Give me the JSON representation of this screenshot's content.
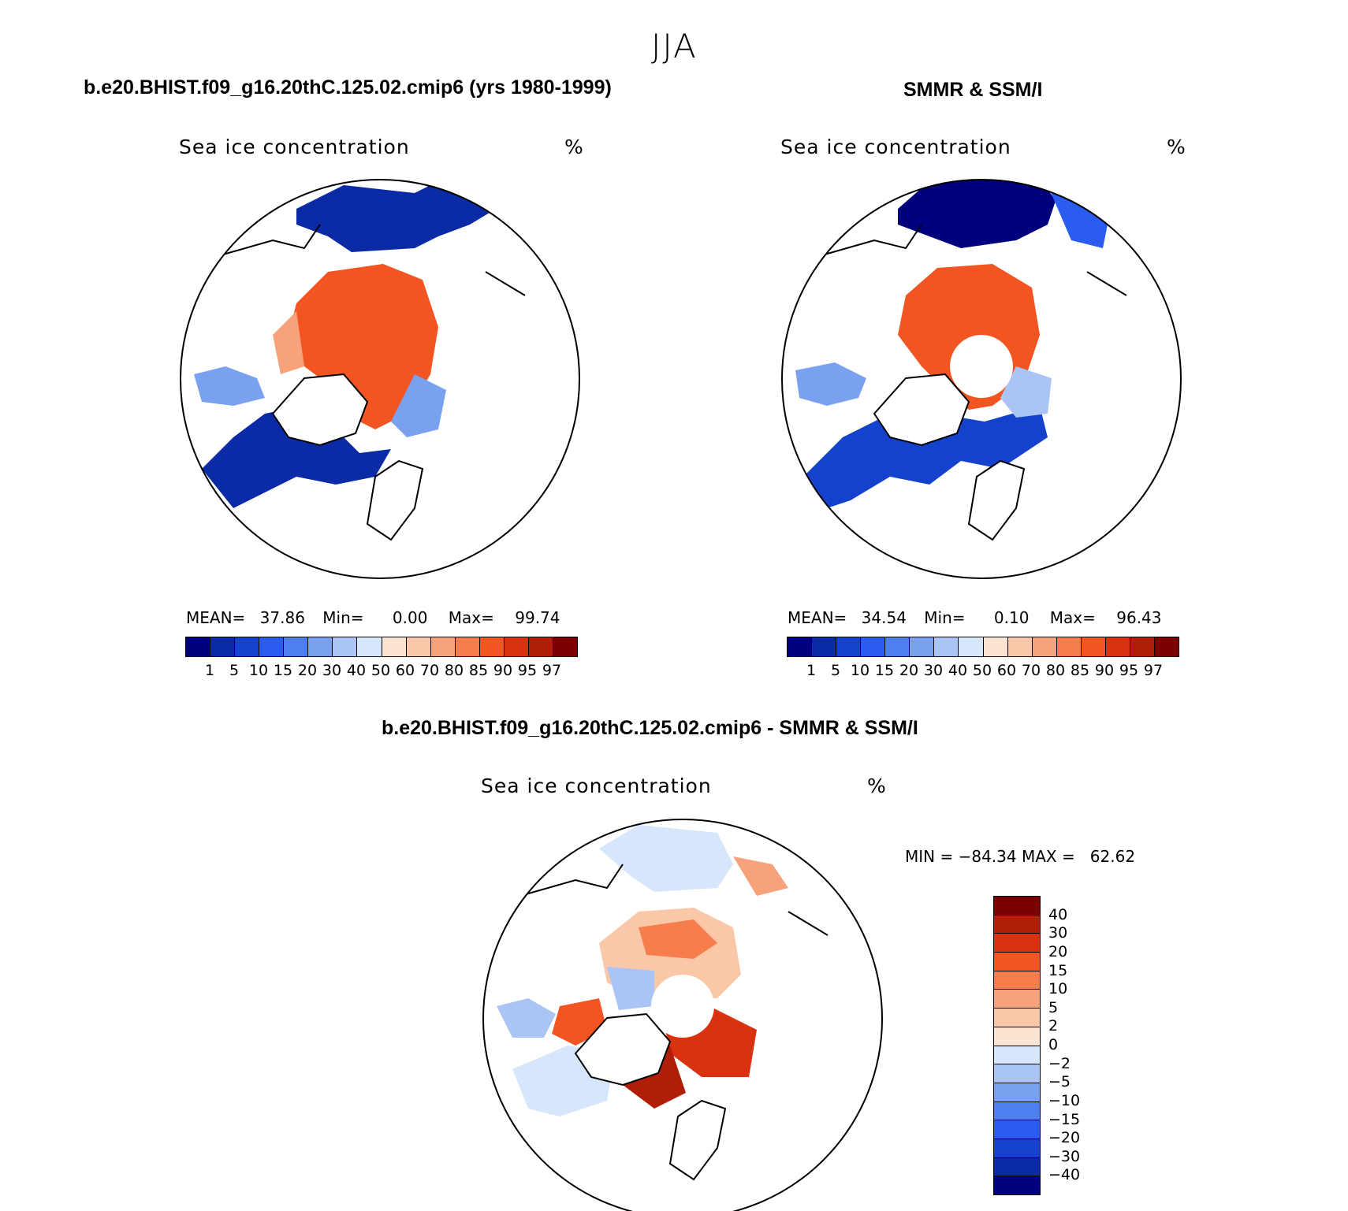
{
  "header": {
    "season": "JJA"
  },
  "panels": [
    {
      "id": "model",
      "title": "b.e20.BHIST.f09_g16.20thC.125.02.cmip6 (yrs 1980-1999)",
      "variable_label": "Sea ice concentration",
      "units": "%",
      "stats": {
        "mean_label": "MEAN=",
        "mean": "37.86",
        "min_label": "Min=",
        "min": "0.00",
        "max_label": "Max=",
        "max": "99.74"
      },
      "pole_hole": false
    },
    {
      "id": "obs",
      "title": "SMMR & SSM/I",
      "variable_label": "Sea ice concentration",
      "units": "%",
      "stats": {
        "mean_label": "MEAN=",
        "mean": "34.54",
        "min_label": "Min=",
        "min": "0.10",
        "max_label": "Max=",
        "max": "96.43"
      },
      "pole_hole": true
    },
    {
      "id": "diff",
      "title": "b.e20.BHIST.f09_g16.20thC.125.02.cmip6 - SMMR & SSM/I",
      "variable_label": "Sea ice concentration",
      "units": "%",
      "stats": {
        "text": "MIN = −84.34 MAX =   62.62"
      },
      "pole_hole": true
    }
  ],
  "colorbars": {
    "concentration": {
      "labels": [
        "1",
        "5",
        "10",
        "15",
        "20",
        "30",
        "40",
        "50",
        "60",
        "70",
        "80",
        "85",
        "90",
        "95",
        "97"
      ],
      "colors": [
        "#00007f",
        "#0a2aa6",
        "#1442cc",
        "#2a5cf0",
        "#4d7fee",
        "#7aa0f0",
        "#aac4f6",
        "#d6e6fb",
        "#fde4d2",
        "#fbc7a9",
        "#f7a27a",
        "#f77d4d",
        "#f25522",
        "#d93210",
        "#b01e08",
        "#7a0000"
      ]
    },
    "difference": {
      "labels": [
        "40",
        "30",
        "20",
        "15",
        "10",
        "5",
        "2",
        "0",
        "−2",
        "−5",
        "−10",
        "−15",
        "−20",
        "−30",
        "−40"
      ],
      "colors": [
        "#7a0000",
        "#b01e08",
        "#d93210",
        "#f25522",
        "#f77d4d",
        "#f7a27a",
        "#fbc7a9",
        "#fde4d2",
        "#d6e6fb",
        "#aac4f6",
        "#7aa0f0",
        "#4d7fee",
        "#2a5cf0",
        "#1442cc",
        "#0a2aa6",
        "#00007f"
      ]
    }
  }
}
